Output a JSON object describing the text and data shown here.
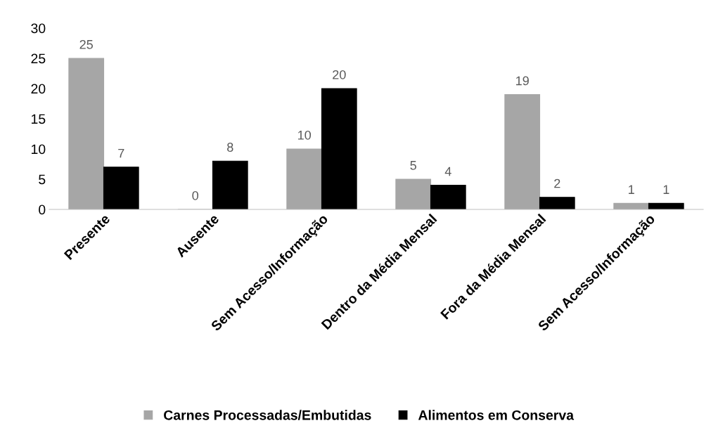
{
  "chart_data": {
    "type": "bar",
    "categories": [
      "Presente",
      "Ausente",
      "Sem Acesso/Informação",
      "Dentro da Média Mensal",
      "Fora da Média Mensal",
      "Sem Acesso/Informação"
    ],
    "series": [
      {
        "name": "Carnes Processadas/Embutidas",
        "color": "#a6a6a6",
        "values": [
          25,
          0,
          10,
          5,
          19,
          1
        ]
      },
      {
        "name": "Alimentos em Conserva",
        "color": "#000000",
        "values": [
          7,
          8,
          20,
          4,
          2,
          1
        ]
      }
    ],
    "ylim": [
      0,
      30
    ],
    "yticks": [
      0,
      5,
      10,
      15,
      20,
      25,
      30
    ],
    "grid": false,
    "legend": "bottom",
    "data_labels": true
  }
}
